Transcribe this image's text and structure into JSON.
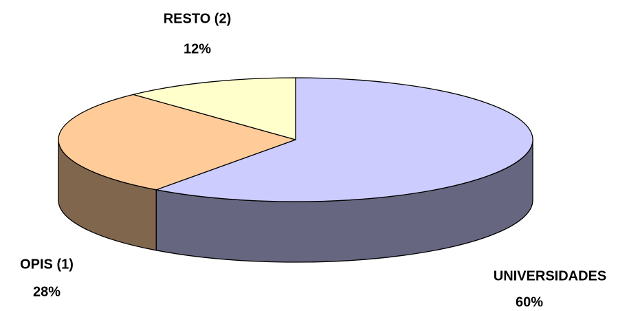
{
  "chart_data": {
    "type": "pie3d",
    "categories": [
      "UNIVERSIDADES",
      "OPIS (1)",
      "RESTO (2)"
    ],
    "values": [
      60,
      28,
      12
    ],
    "value_labels": [
      "60%",
      "28%",
      "12%"
    ],
    "colors": [
      "#ccccff",
      "#ffcc99",
      "#ffffcc"
    ]
  }
}
